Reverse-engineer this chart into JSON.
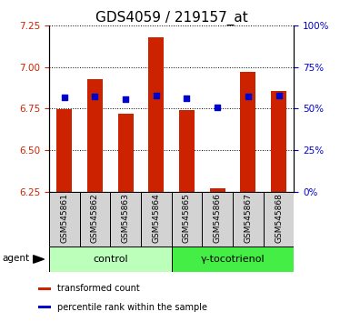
{
  "title": "GDS4059 / 219157_at",
  "samples": [
    "GSM545861",
    "GSM545862",
    "GSM545863",
    "GSM545864",
    "GSM545865",
    "GSM545866",
    "GSM545867",
    "GSM545868"
  ],
  "red_values": [
    6.749,
    6.93,
    6.718,
    7.18,
    6.742,
    6.268,
    6.97,
    6.855
  ],
  "blue_values": [
    6.82,
    6.823,
    6.805,
    6.832,
    6.812,
    6.76,
    6.822,
    6.832
  ],
  "ylim": [
    6.25,
    7.25
  ],
  "yticks_left": [
    6.25,
    6.5,
    6.75,
    7.0,
    7.25
  ],
  "yticks_right_labels": [
    "0%",
    "25%",
    "50%",
    "75%",
    "100%"
  ],
  "yticks_right_values": [
    6.25,
    6.5,
    6.75,
    7.0,
    7.25
  ],
  "bar_bottom": 6.25,
  "bar_color": "#cc2200",
  "dot_color": "#0000cc",
  "dot_size": 18,
  "groups": [
    {
      "label": "control",
      "samples": [
        0,
        1,
        2,
        3
      ],
      "color": "#bbffbb"
    },
    {
      "label": "γ-tocotrienol",
      "samples": [
        4,
        5,
        6,
        7
      ],
      "color": "#44ee44"
    }
  ],
  "agent_label": "agent",
  "legend_items": [
    {
      "color": "#cc2200",
      "label": "transformed count"
    },
    {
      "color": "#0000cc",
      "label": "percentile rank within the sample"
    }
  ],
  "grid_color": "black",
  "background_color": "#ffffff",
  "ylabel_color": "#cc2200",
  "ylabel2_color": "#0000cc",
  "title_fontsize": 11,
  "axis_fontsize": 7.5,
  "sample_fontsize": 6.5,
  "group_fontsize": 8,
  "legend_fontsize": 7,
  "bar_width": 0.5
}
